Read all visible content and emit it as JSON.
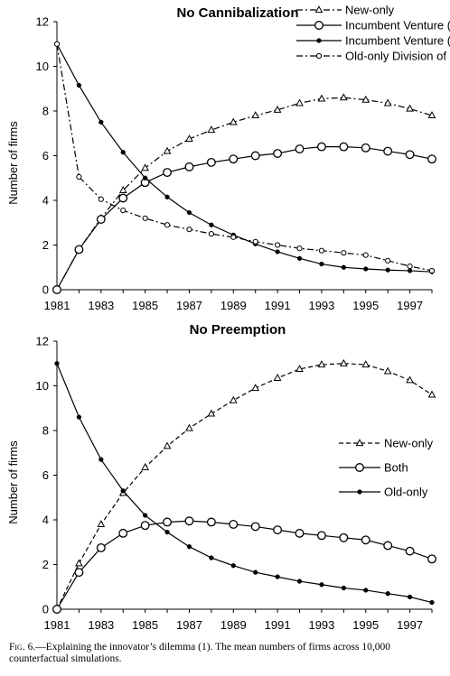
{
  "chart_data": [
    {
      "type": "line",
      "title": "No Cannibalization",
      "xlabel": "",
      "ylabel": "Number of firms",
      "xlim": [
        1981,
        1998
      ],
      "ylim": [
        0,
        12
      ],
      "xticks": [
        "1981",
        "1983",
        "1985",
        "1987",
        "1989",
        "1991",
        "1993",
        "1995",
        "1997"
      ],
      "yticks": [
        "0",
        "2",
        "4",
        "6",
        "8",
        "10",
        "12"
      ],
      "legend_position": "top-right",
      "x": [
        1981,
        1982,
        1983,
        1984,
        1985,
        1986,
        1987,
        1988,
        1989,
        1990,
        1991,
        1992,
        1993,
        1994,
        1995,
        1996,
        1997,
        1998
      ],
      "series": [
        {
          "name": "New-only",
          "style": "dash-dot, open triangles",
          "values": [
            0,
            1.8,
            3.2,
            4.45,
            5.45,
            6.2,
            6.75,
            7.15,
            7.5,
            7.8,
            8.05,
            8.35,
            8.55,
            8.6,
            8.5,
            8.35,
            8.1,
            7.8
          ]
        },
        {
          "name": "Incumbent Venture (post-innovation)",
          "style": "solid, open circles",
          "values": [
            0,
            1.8,
            3.15,
            4.1,
            4.8,
            5.25,
            5.5,
            5.7,
            5.85,
            6.0,
            6.1,
            6.3,
            6.4,
            6.4,
            6.35,
            6.2,
            6.05,
            5.85
          ]
        },
        {
          "name": "Incumbent Venture (pre-innovation)",
          "style": "solid, filled dots",
          "values": [
            11,
            9.15,
            7.5,
            6.15,
            5.0,
            4.15,
            3.45,
            2.9,
            2.45,
            2.05,
            1.7,
            1.4,
            1.15,
            1.0,
            0.93,
            0.88,
            0.85,
            0.8
          ]
        },
        {
          "name": "Old-only Division of Incumbent",
          "style": "dash-dot, small open circles",
          "values": [
            11,
            5.05,
            4.05,
            3.55,
            3.2,
            2.9,
            2.7,
            2.5,
            2.35,
            2.15,
            2.0,
            1.85,
            1.75,
            1.65,
            1.55,
            1.3,
            1.05,
            0.85
          ]
        }
      ]
    },
    {
      "type": "line",
      "title": "No Preemption",
      "xlabel": "",
      "ylabel": "Number of firms",
      "xlim": [
        1981,
        1998
      ],
      "ylim": [
        0,
        12
      ],
      "xticks": [
        "1981",
        "1983",
        "1985",
        "1987",
        "1989",
        "1991",
        "1993",
        "1995",
        "1997"
      ],
      "yticks": [
        "0",
        "2",
        "4",
        "6",
        "8",
        "10",
        "12"
      ],
      "legend_position": "right",
      "x": [
        1981,
        1982,
        1983,
        1984,
        1985,
        1986,
        1987,
        1988,
        1989,
        1990,
        1991,
        1992,
        1993,
        1994,
        1995,
        1996,
        1997,
        1998
      ],
      "series": [
        {
          "name": "New-only",
          "style": "dashed, open triangles",
          "values": [
            0,
            2.05,
            3.8,
            5.2,
            6.35,
            7.3,
            8.1,
            8.75,
            9.35,
            9.9,
            10.35,
            10.75,
            10.95,
            11.0,
            10.95,
            10.65,
            10.25,
            9.6
          ]
        },
        {
          "name": "Both",
          "style": "solid, open circles",
          "values": [
            0,
            1.65,
            2.75,
            3.4,
            3.75,
            3.9,
            3.95,
            3.9,
            3.8,
            3.7,
            3.55,
            3.4,
            3.3,
            3.2,
            3.1,
            2.85,
            2.6,
            2.25
          ]
        },
        {
          "name": "Old-only",
          "style": "solid, filled dots",
          "values": [
            11,
            8.6,
            6.7,
            5.3,
            4.2,
            3.45,
            2.8,
            2.3,
            1.95,
            1.65,
            1.45,
            1.25,
            1.1,
            0.95,
            0.85,
            0.7,
            0.55,
            0.3
          ]
        }
      ]
    }
  ],
  "caption": {
    "fig_label": "Fig. 6.",
    "text": "—Explaining the innovator’s dilemma (1). The mean numbers of firms across 10,000 counterfactual simulations."
  }
}
